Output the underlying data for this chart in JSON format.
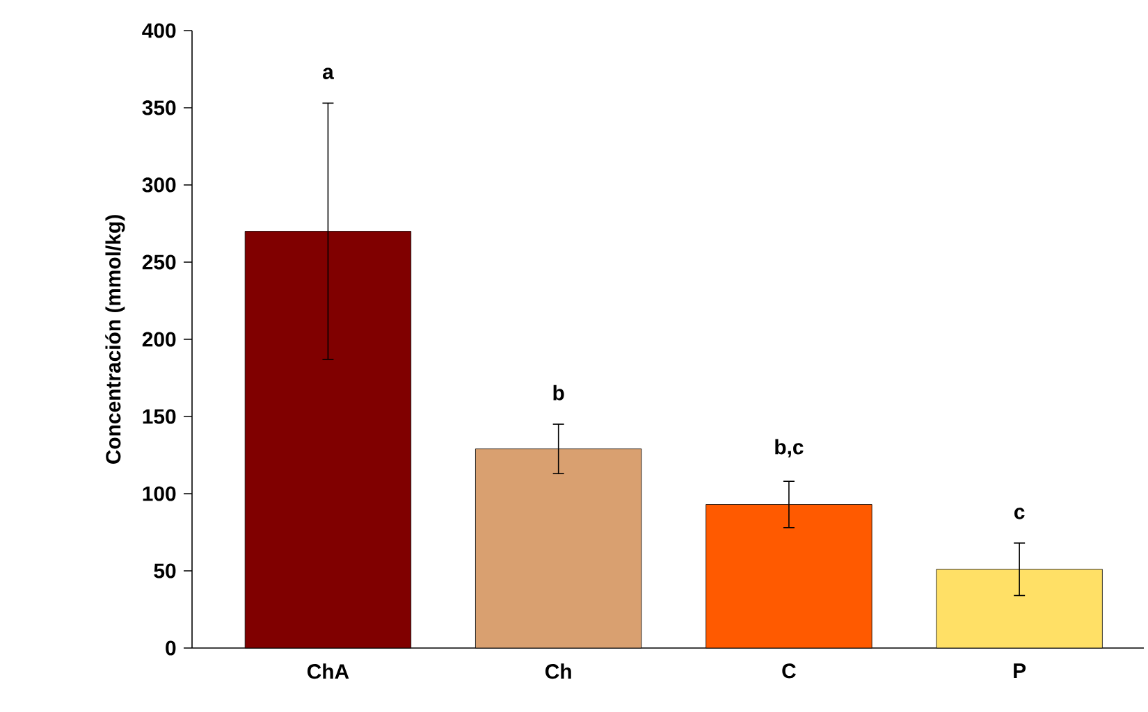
{
  "chart_data": {
    "type": "bar",
    "ylabel": "Concentración (mmol/kg)",
    "categories": [
      "ChA",
      "Ch",
      "C",
      "P"
    ],
    "values": [
      270,
      129,
      93,
      51
    ],
    "errors": [
      83,
      16,
      15,
      17
    ],
    "colors": [
      "#800000",
      "#d9a070",
      "#ff5a00",
      "#ffe066"
    ],
    "ylim": [
      0,
      400
    ],
    "yticks": [
      0,
      50,
      100,
      150,
      200,
      250,
      300,
      350,
      400
    ],
    "grid": false,
    "annotations": [
      "a",
      "b",
      "b,c",
      "c"
    ]
  }
}
